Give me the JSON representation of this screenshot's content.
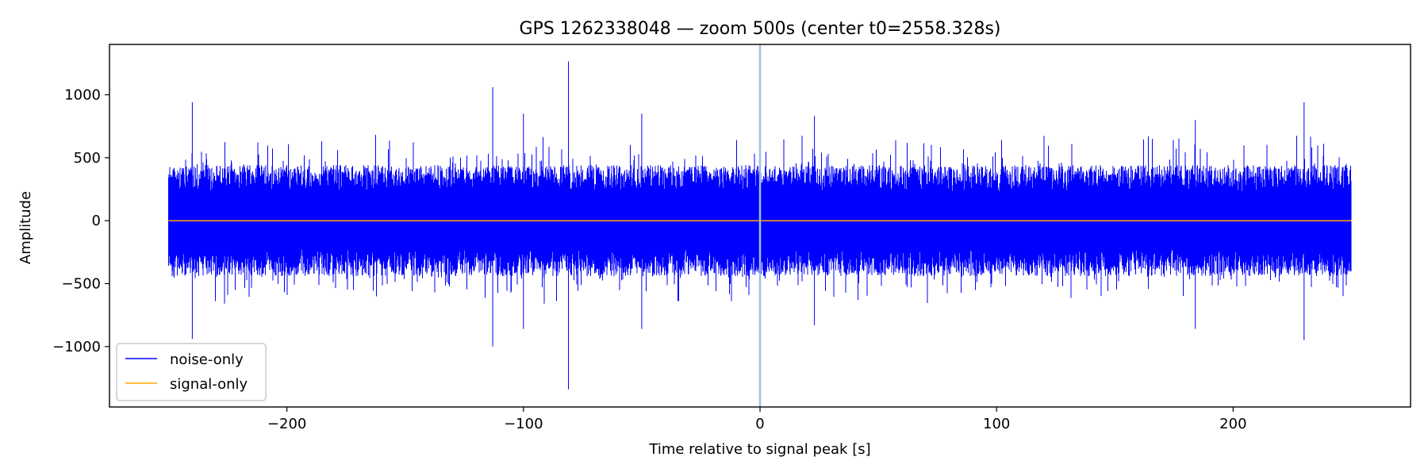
{
  "chart_data": {
    "type": "line",
    "title": "GPS 1262338048 — zoom 500s (center t0=2558.328s)",
    "xlabel": "Time relative to signal peak [s]",
    "ylabel": "Amplitude",
    "xlim": [
      -275,
      275
    ],
    "ylim": [
      -1480,
      1400
    ],
    "xticks": [
      -200,
      -100,
      0,
      100,
      200
    ],
    "xtick_labels": [
      "−200",
      "−100",
      "0",
      "100",
      "200"
    ],
    "yticks": [
      1000,
      500,
      0,
      -500,
      -1000
    ],
    "ytick_labels": [
      "1000",
      "500",
      "0",
      "−500",
      "−1000"
    ],
    "grid": false,
    "legend_position": "lower-left",
    "vline": {
      "x": 0,
      "color": "#9ec0e0"
    },
    "series": [
      {
        "name": "noise-only",
        "color": "#0000ff",
        "x_range": [
          -250,
          250
        ],
        "typical_envelope": 420,
        "notable_extremes": [
          {
            "x": -240,
            "y": 940
          },
          {
            "x": -240,
            "y": -940
          },
          {
            "x": -113,
            "y": 1060
          },
          {
            "x": -113,
            "y": -1000
          },
          {
            "x": -100,
            "y": 850
          },
          {
            "x": -100,
            "y": -860
          },
          {
            "x": -81,
            "y": 1265
          },
          {
            "x": -81,
            "y": -1340
          },
          {
            "x": -50,
            "y": 850
          },
          {
            "x": -50,
            "y": -860
          },
          {
            "x": 23,
            "y": 830
          },
          {
            "x": 23,
            "y": -830
          },
          {
            "x": 184,
            "y": 800
          },
          {
            "x": 184,
            "y": -860
          },
          {
            "x": 230,
            "y": 940
          },
          {
            "x": 230,
            "y": -950
          }
        ]
      },
      {
        "name": "signal-only",
        "color": "#ffa500",
        "x": [
          -250,
          250
        ],
        "y": [
          0,
          0
        ]
      }
    ]
  }
}
